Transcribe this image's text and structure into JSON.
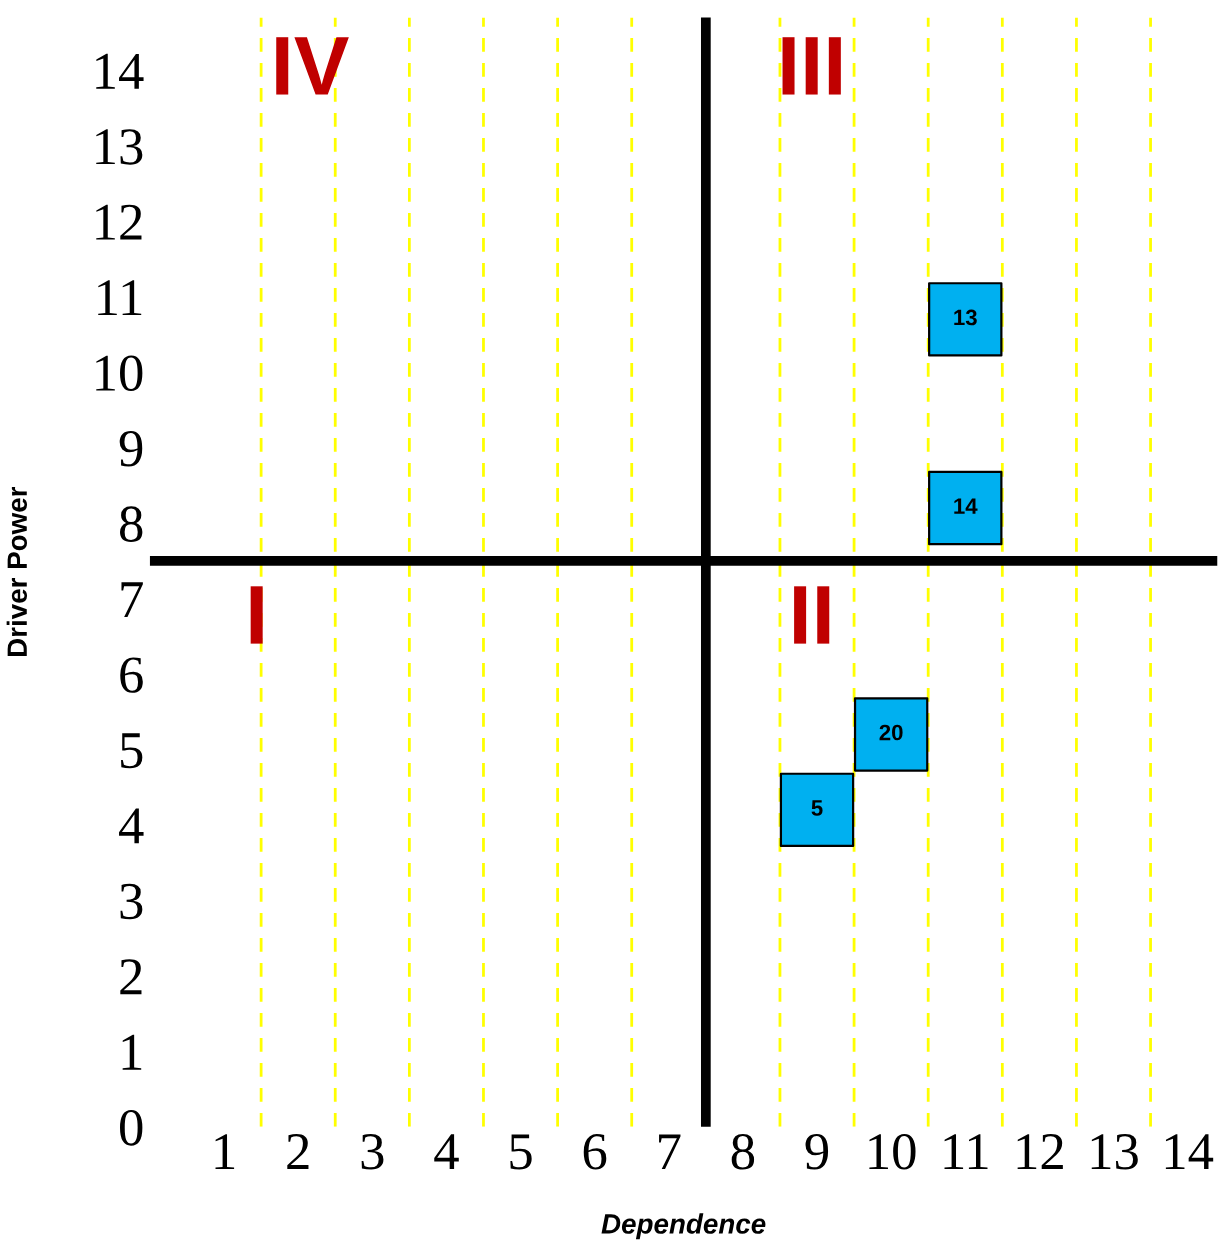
{
  "chart_data": {
    "type": "scatter",
    "xlabel": "Dependence",
    "ylabel": "Driver Power",
    "x": [
      11,
      11,
      10,
      9
    ],
    "series": [
      {
        "color": "#00b0f0",
        "values": [
          10.7,
          8.2,
          5.2,
          4.2
        ]
      }
    ],
    "marker": "square",
    "xlim": [
      0,
      14.4
    ],
    "ylim": [
      0,
      14.7
    ],
    "xticks": [
      1,
      2,
      3,
      4,
      5,
      6,
      7,
      8,
      9,
      10,
      11,
      12,
      13,
      14
    ],
    "yticks": [
      0,
      1,
      2,
      3,
      4,
      5,
      6,
      7,
      8,
      9,
      10,
      11,
      12,
      13,
      14
    ],
    "grid": false,
    "legend": false,
    "ref_lines": [
      {
        "axis": "x",
        "value": 7.5,
        "color": "#000000",
        "line_style": "solid"
      },
      {
        "axis": "y",
        "value": 7.5,
        "color": "#000000",
        "line_style": "solid"
      },
      {
        "axis": "x",
        "value": 1.5,
        "color": "#ffff00",
        "line_style": "dashed"
      },
      {
        "axis": "x",
        "value": 2.5,
        "color": "#ffff00",
        "line_style": "dashed"
      },
      {
        "axis": "x",
        "value": 3.5,
        "color": "#ffff00",
        "line_style": "dashed"
      },
      {
        "axis": "x",
        "value": 4.5,
        "color": "#ffff00",
        "line_style": "dashed"
      },
      {
        "axis": "x",
        "value": 5.5,
        "color": "#ffff00",
        "line_style": "dashed"
      },
      {
        "axis": "x",
        "value": 6.5,
        "color": "#ffff00",
        "line_style": "dashed"
      },
      {
        "axis": "x",
        "value": 8.5,
        "color": "#ffff00",
        "line_style": "dashed"
      },
      {
        "axis": "x",
        "value": 9.5,
        "color": "#ffff00",
        "line_style": "dashed"
      },
      {
        "axis": "x",
        "value": 10.5,
        "color": "#ffff00",
        "line_style": "dashed"
      },
      {
        "axis": "x",
        "value": 11.5,
        "color": "#ffff00",
        "line_style": "dashed"
      },
      {
        "axis": "x",
        "value": 12.5,
        "color": "#ffff00",
        "line_style": "dashed"
      },
      {
        "axis": "x",
        "value": 13.5,
        "color": "#ffff00",
        "line_style": "dashed"
      }
    ],
    "annotations": [
      {
        "text": "13",
        "x": 11,
        "y": 10.7
      },
      {
        "text": "14",
        "x": 11,
        "y": 8.2
      },
      {
        "text": "20",
        "x": 10,
        "y": 5.2
      },
      {
        "text": "5",
        "x": 9,
        "y": 4.2
      },
      "IV",
      "III",
      "I",
      "II"
    ]
  }
}
